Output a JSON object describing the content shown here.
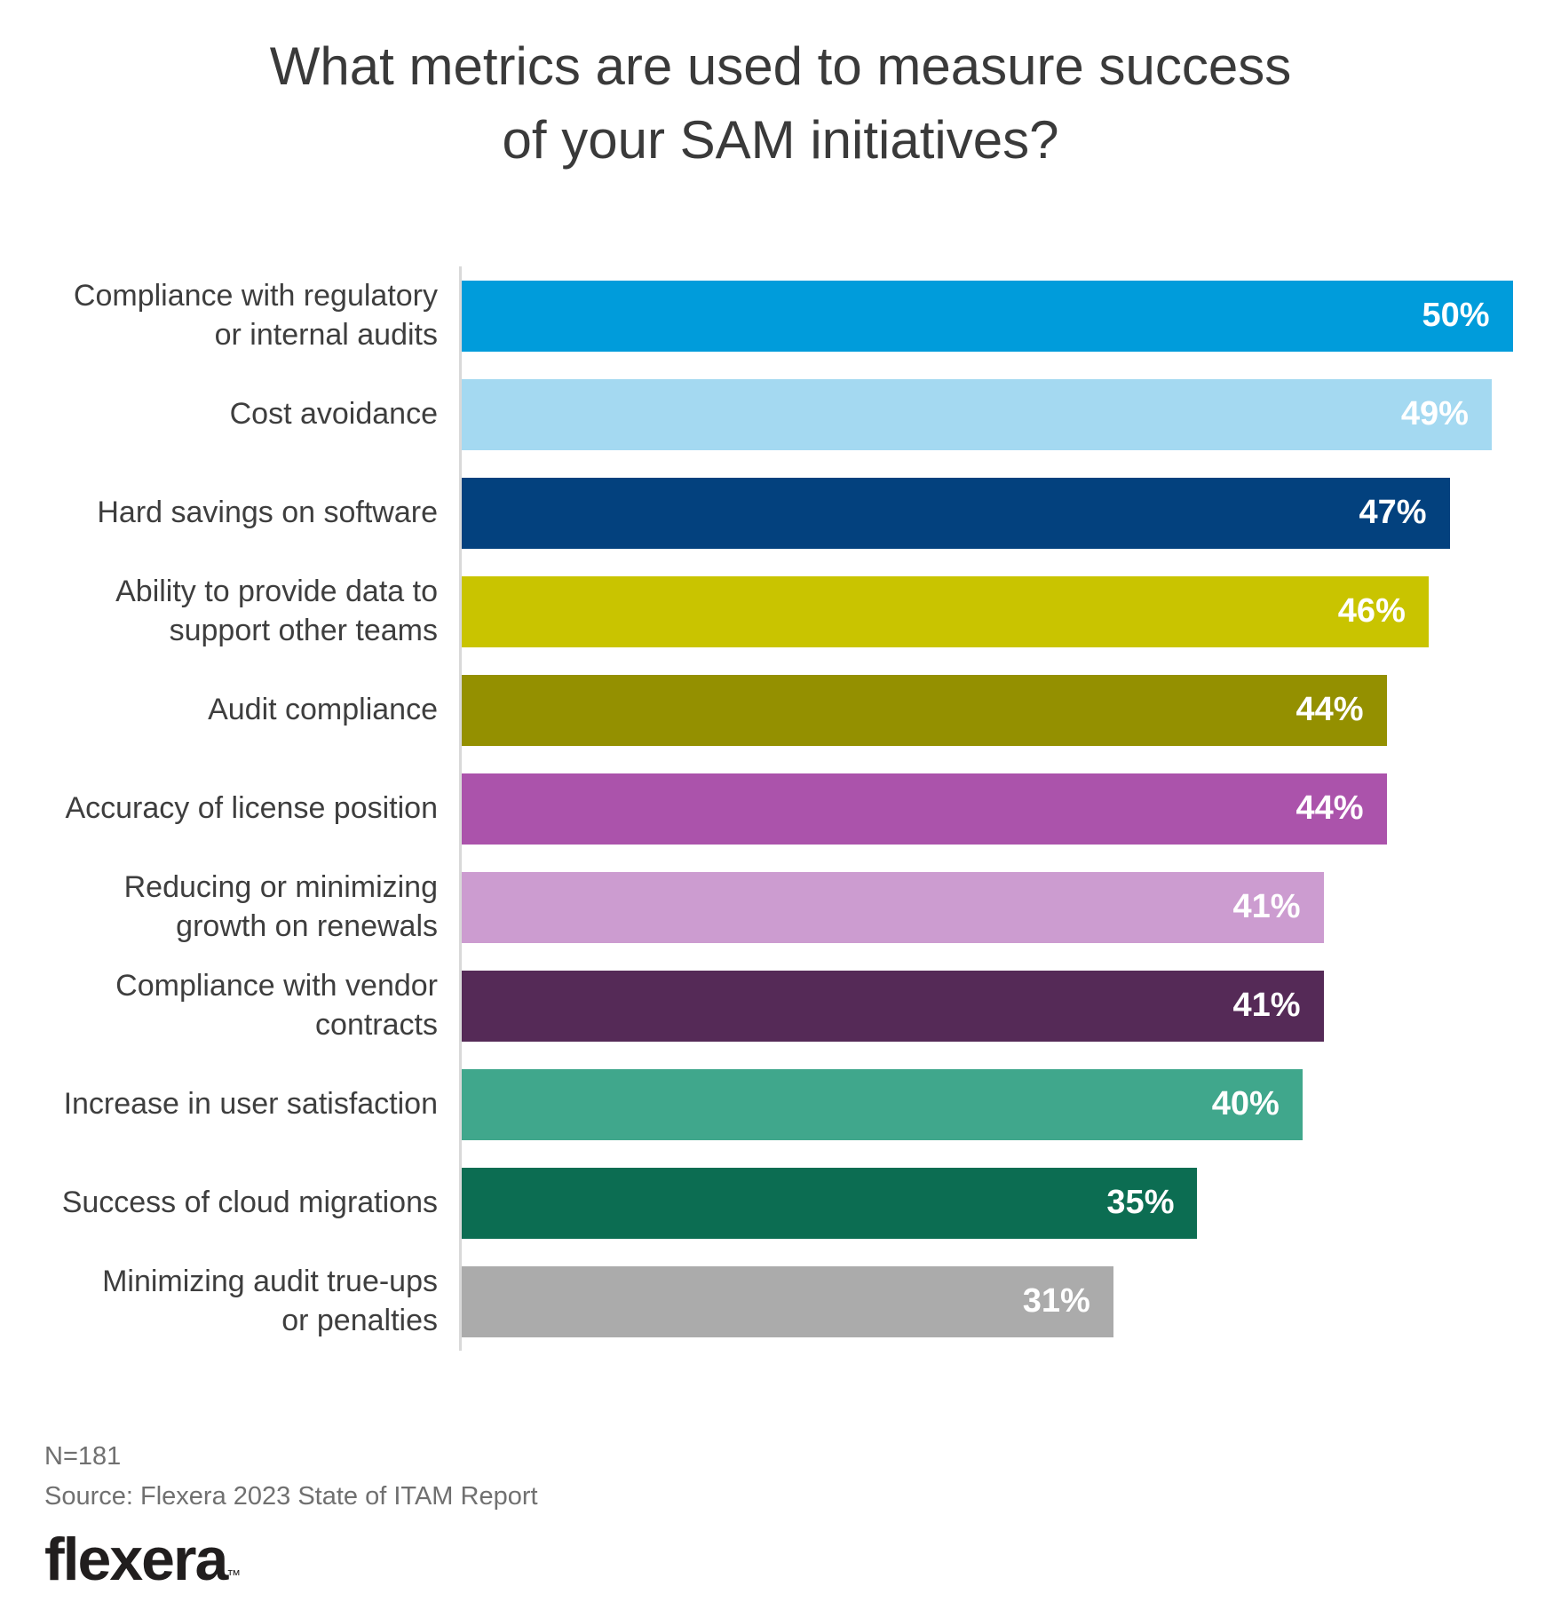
{
  "title_lines": {
    "line1": "What metrics are used to measure success",
    "line2": "of your SAM initiatives?"
  },
  "footer": {
    "n_label": "N=181",
    "source": "Source: Flexera 2023 State of ITAM Report",
    "logo_text": "flexera",
    "trademark": "™"
  },
  "chart_data": {
    "type": "bar",
    "orientation": "horizontal",
    "title": "What metrics are used to measure success of your SAM initiatives?",
    "categories": [
      "Compliance with regulatory\nor internal audits",
      "Cost avoidance",
      "Hard savings on software",
      "Ability to provide data to\nsupport other teams",
      "Audit compliance",
      "Accuracy of license position",
      "Reducing or minimizing\ngrowth on renewals",
      "Compliance with vendor\ncontracts",
      "Increase in user satisfaction",
      "Success of cloud migrations",
      "Minimizing audit true-ups\nor penalties"
    ],
    "values": [
      50,
      49,
      47,
      46,
      44,
      44,
      41,
      41,
      40,
      35,
      31
    ],
    "value_labels": [
      "50%",
      "49%",
      "47%",
      "46%",
      "44%",
      "44%",
      "41%",
      "41%",
      "40%",
      "35%",
      "31%"
    ],
    "colors": [
      "#009cdb",
      "#a4d9f1",
      "#03417e",
      "#c9c400",
      "#949000",
      "#ab53ab",
      "#cc9cd0",
      "#552a57",
      "#40a78c",
      "#0c6d52",
      "#ababab"
    ],
    "xlabel": "",
    "ylabel": "",
    "xlim": [
      0,
      52.3
    ],
    "grid": false,
    "legend": "none",
    "value_labels_position": "inside-end",
    "value_label_color": "#ffffff",
    "axis_line_color": "#d9d9d9"
  }
}
